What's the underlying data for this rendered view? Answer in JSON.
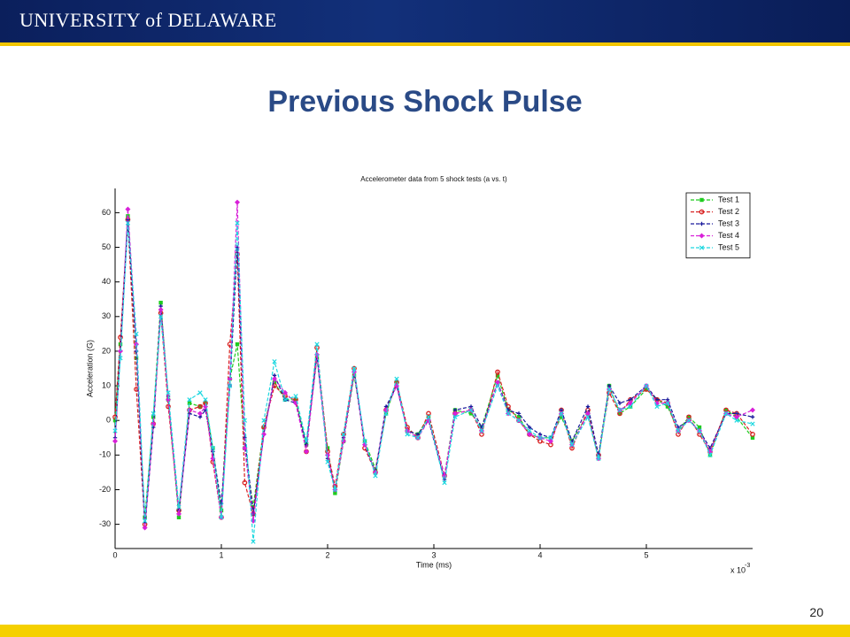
{
  "header": {
    "logo": "UNIVERSITY of DELAWARE"
  },
  "title": "Previous Shock Pulse",
  "page_number": "20",
  "chart_data": {
    "type": "line",
    "title": "Accelerometer data from 5 shock tests (a vs. t)",
    "xlabel": "Time (ms)",
    "ylabel": "Acceleration (G)",
    "x_multiplier": "x 10",
    "x_multiplier_exponent": "-3",
    "xlim": [
      0,
      6
    ],
    "xticks": [
      0,
      1,
      2,
      3,
      4,
      5
    ],
    "ylim": [
      -37,
      67
    ],
    "yticks": [
      -30,
      -20,
      -10,
      0,
      10,
      20,
      30,
      40,
      50,
      60
    ],
    "grid": false,
    "legend": "upper right",
    "x": [
      0,
      0.05,
      0.12,
      0.2,
      0.28,
      0.36,
      0.43,
      0.5,
      0.6,
      0.7,
      0.8,
      0.85,
      0.92,
      1.0,
      1.08,
      1.15,
      1.22,
      1.3,
      1.4,
      1.5,
      1.6,
      1.7,
      1.8,
      1.9,
      2.0,
      2.07,
      2.15,
      2.25,
      2.35,
      2.45,
      2.55,
      2.65,
      2.75,
      2.85,
      2.95,
      3.1,
      3.2,
      3.35,
      3.45,
      3.6,
      3.7,
      3.8,
      3.9,
      4.0,
      4.1,
      4.2,
      4.3,
      4.45,
      4.55,
      4.65,
      4.75,
      4.85,
      5.0,
      5.1,
      5.2,
      5.3,
      5.4,
      5.5,
      5.6,
      5.75,
      5.85,
      6.0
    ],
    "series": [
      {
        "name": "Test 1",
        "color": "#1fcc1f",
        "marker": "square",
        "values": [
          0,
          22,
          59,
          18,
          -28,
          1,
          34,
          6,
          -28,
          5,
          4,
          5,
          -8,
          -26,
          12,
          22,
          -8,
          -25,
          -2,
          11,
          6,
          6,
          -7,
          18,
          -8,
          -21,
          -6,
          13,
          -6,
          -14,
          2,
          11,
          -3,
          -4,
          1,
          -16,
          3,
          2,
          -2,
          13,
          3,
          1,
          -4,
          -5,
          -5,
          1,
          -6,
          2,
          -11,
          10,
          2,
          4,
          9,
          6,
          4,
          -3,
          1,
          -2,
          -10,
          3,
          1,
          -5
        ]
      },
      {
        "name": "Test 2",
        "color": "#d82020",
        "marker": "circle",
        "values": [
          1,
          24,
          58,
          9,
          -30,
          -1,
          31,
          4,
          -26,
          3,
          4,
          5,
          -12,
          -28,
          22,
          48,
          -18,
          -27,
          -2,
          10,
          7,
          6,
          -9,
          21,
          -9,
          -19,
          -4,
          15,
          -8,
          -15,
          3,
          11,
          -2,
          -5,
          2,
          -16,
          2,
          3,
          -4,
          14,
          4,
          0,
          -4,
          -6,
          -7,
          3,
          -8,
          3,
          -10,
          8,
          2,
          6,
          9,
          6,
          5,
          -4,
          1,
          -4,
          -9,
          3,
          2,
          -4
        ]
      },
      {
        "name": "Test 3",
        "color": "#1a1a9c",
        "marker": "plus",
        "values": [
          -5,
          20,
          58,
          20,
          -31,
          -2,
          33,
          7,
          -26,
          2,
          1,
          3,
          -9,
          -24,
          10,
          50,
          -5,
          -27,
          -4,
          13,
          6,
          5,
          -7,
          19,
          -11,
          -20,
          -5,
          14,
          -7,
          -15,
          4,
          10,
          -3,
          -4,
          0,
          -17,
          3,
          4,
          -2,
          11,
          3,
          2,
          -2,
          -4,
          -5,
          3,
          -6,
          4,
          -10,
          10,
          5,
          6,
          10,
          6,
          6,
          -2,
          0,
          -3,
          -8,
          2,
          2,
          1
        ]
      },
      {
        "name": "Test 4",
        "color": "#d820d8",
        "marker": "diamond",
        "values": [
          -6,
          20,
          61,
          22,
          -31,
          -1,
          32,
          6,
          -27,
          3,
          2,
          4,
          -11,
          -28,
          12,
          63,
          -8,
          -29,
          -4,
          12,
          8,
          5,
          -9,
          19,
          -10,
          -20,
          -6,
          14,
          -7,
          -15,
          3,
          10,
          -3,
          -5,
          0,
          -16,
          2,
          3,
          -3,
          11,
          2,
          0,
          -4,
          -5,
          -6,
          2,
          -7,
          2,
          -11,
          9,
          3,
          5,
          10,
          5,
          5,
          -3,
          0,
          -3,
          -9,
          2,
          1,
          3
        ]
      },
      {
        "name": "Test 5",
        "color": "#1fd8e0",
        "marker": "x",
        "values": [
          -3,
          18,
          57,
          25,
          -29,
          2,
          30,
          8,
          -25,
          6,
          8,
          6,
          -8,
          -28,
          10,
          57,
          0,
          -35,
          0,
          17,
          6,
          7,
          -6,
          22,
          -12,
          -20,
          -4,
          15,
          -6,
          -16,
          2,
          12,
          -4,
          -5,
          1,
          -18,
          1,
          3,
          -3,
          10,
          2,
          0,
          -3,
          -5,
          -5,
          2,
          -7,
          1,
          -11,
          9,
          3,
          4,
          10,
          4,
          5,
          -3,
          0,
          -3,
          -10,
          2,
          0,
          -1
        ]
      }
    ]
  }
}
